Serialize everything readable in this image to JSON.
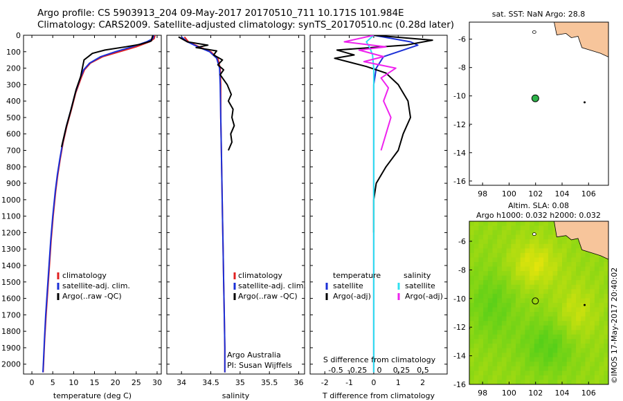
{
  "header": {
    "line1": "Argo profile: CS 5903913_204 09-May-2017 20170510_711 10.171S 101.984E",
    "line2": "Climatology: CARS2009. Satellite-adjusted climatology: synTS_20170510.nc (0.28d later)"
  },
  "stamp": "©IMOS 17-May-2017 20:40:02",
  "colors": {
    "climatology": "#e02020",
    "satellite": "#1a2fd6",
    "argo": "#000000",
    "sat_s": "#30e0f0",
    "argo_s": "#ee22ee",
    "land": "#f7c59b",
    "argo_marker": "#2db34a"
  },
  "chart_data": [
    {
      "type": "line",
      "name": "temperature-panel",
      "xlabel": "temperature (deg C)",
      "ylabel": "",
      "xlim": [
        -2,
        31
      ],
      "ylim": [
        2060,
        0
      ],
      "xticks": [
        0,
        5,
        10,
        15,
        20,
        25,
        30
      ],
      "yticks": [
        0,
        100,
        200,
        300,
        400,
        500,
        600,
        700,
        800,
        900,
        1000,
        1100,
        1200,
        1300,
        1400,
        1500,
        1600,
        1700,
        1800,
        1900,
        2000
      ],
      "legend": [
        "climatology",
        "satellite-adj. clim.",
        "Argo(..raw -QC)"
      ],
      "series": [
        {
          "name": "climatology",
          "color": "red",
          "points": [
            [
              29.5,
              0
            ],
            [
              29.3,
              20
            ],
            [
              28.2,
              40
            ],
            [
              25,
              70
            ],
            [
              21,
              100
            ],
            [
              17,
              130
            ],
            [
              14,
              170
            ],
            [
              12.6,
              210
            ],
            [
              11.8,
              260
            ],
            [
              10.5,
              350
            ],
            [
              9.5,
              450
            ],
            [
              8.4,
              550
            ],
            [
              7.5,
              650
            ],
            [
              6.8,
              750
            ],
            [
              6.2,
              850
            ],
            [
              5.7,
              950
            ],
            [
              5.1,
              1100
            ],
            [
              4.6,
              1250
            ],
            [
              4.2,
              1400
            ],
            [
              3.8,
              1550
            ],
            [
              3.4,
              1700
            ],
            [
              3.05,
              1850
            ],
            [
              2.8,
              2000
            ],
            [
              2.7,
              2050
            ]
          ]
        },
        {
          "name": "satellite-adj. clim.",
          "color": "blue",
          "points": [
            [
              29.2,
              0
            ],
            [
              29.0,
              20
            ],
            [
              27.5,
              40
            ],
            [
              24,
              70
            ],
            [
              20,
              100
            ],
            [
              16.5,
              130
            ],
            [
              13.8,
              170
            ],
            [
              12.4,
              210
            ],
            [
              11.6,
              260
            ],
            [
              10.4,
              350
            ],
            [
              9.4,
              450
            ],
            [
              8.3,
              550
            ],
            [
              7.4,
              650
            ],
            [
              6.7,
              750
            ],
            [
              6.1,
              850
            ],
            [
              5.6,
              950
            ],
            [
              5.0,
              1100
            ],
            [
              4.5,
              1250
            ],
            [
              4.1,
              1400
            ],
            [
              3.7,
              1550
            ],
            [
              3.3,
              1700
            ],
            [
              3.0,
              1850
            ],
            [
              2.75,
              2000
            ],
            [
              2.65,
              2050
            ]
          ]
        },
        {
          "name": "Argo(..raw -QC)",
          "color": "black",
          "points": [
            [
              29.0,
              0
            ],
            [
              28.8,
              15
            ],
            [
              28.6,
              35
            ],
            [
              26,
              55
            ],
            [
              22.5,
              70
            ],
            [
              17.5,
              90
            ],
            [
              14.5,
              110
            ],
            [
              12.5,
              150
            ],
            [
              12.1,
              200
            ],
            [
              11.7,
              250
            ],
            [
              10.6,
              330
            ],
            [
              9.4,
              450
            ],
            [
              8.2,
              560
            ],
            [
              7.1,
              680
            ]
          ]
        }
      ]
    },
    {
      "type": "line",
      "name": "salinity-panel",
      "xlabel": "salinity",
      "xlim": [
        33.75,
        36.1
      ],
      "ylim": [
        2060,
        0
      ],
      "xticks": [
        34,
        34.5,
        35,
        35.5,
        36
      ],
      "legend": [
        "climatology",
        "satellite-adj. clim.",
        "Argo(..raw -QC)"
      ],
      "annotation": [
        "Argo Australia",
        "PI: Susan Wijffels"
      ],
      "series": [
        {
          "name": "climatology",
          "color": "red",
          "points": [
            [
              34.05,
              10
            ],
            [
              34.12,
              40
            ],
            [
              34.3,
              70
            ],
            [
              34.5,
              100
            ],
            [
              34.62,
              140
            ],
            [
              34.66,
              200
            ],
            [
              34.67,
              300
            ],
            [
              34.67,
              500
            ],
            [
              34.68,
              700
            ],
            [
              34.69,
              900
            ],
            [
              34.7,
              1100
            ],
            [
              34.71,
              1300
            ],
            [
              34.72,
              1500
            ],
            [
              34.73,
              1700
            ],
            [
              34.74,
              1900
            ],
            [
              34.74,
              2050
            ]
          ]
        },
        {
          "name": "satellite-adj. clim.",
          "color": "blue",
          "points": [
            [
              34.0,
              10
            ],
            [
              34.1,
              40
            ],
            [
              34.28,
              70
            ],
            [
              34.48,
              100
            ],
            [
              34.6,
              140
            ],
            [
              34.65,
              200
            ],
            [
              34.66,
              300
            ],
            [
              34.67,
              500
            ],
            [
              34.68,
              700
            ],
            [
              34.69,
              900
            ],
            [
              34.7,
              1100
            ],
            [
              34.71,
              1300
            ],
            [
              34.72,
              1500
            ],
            [
              34.73,
              1700
            ],
            [
              34.74,
              1900
            ],
            [
              34.74,
              2050
            ]
          ]
        },
        {
          "name": "Argo(..raw -QC)",
          "color": "black",
          "points": [
            [
              33.95,
              10
            ],
            [
              34.1,
              40
            ],
            [
              34.45,
              60
            ],
            [
              34.25,
              75
            ],
            [
              34.6,
              95
            ],
            [
              34.55,
              120
            ],
            [
              34.7,
              150
            ],
            [
              34.62,
              180
            ],
            [
              34.72,
              210
            ],
            [
              34.66,
              240
            ],
            [
              34.78,
              300
            ],
            [
              34.85,
              360
            ],
            [
              34.8,
              400
            ],
            [
              34.88,
              450
            ],
            [
              34.86,
              500
            ],
            [
              34.9,
              550
            ],
            [
              34.84,
              600
            ],
            [
              34.86,
              650
            ],
            [
              34.8,
              700
            ]
          ]
        }
      ]
    },
    {
      "type": "line",
      "name": "difference-panel",
      "xlabel": "T difference from climatology",
      "top_label": "S difference from climatology",
      "xlim": [
        -2.6,
        3.0
      ],
      "ylim": [
        2060,
        0
      ],
      "xticks": [
        -2,
        -1,
        0,
        1,
        2
      ],
      "top_ticks": [
        "-0.5",
        "-0.25",
        "0",
        "0.25",
        "0.5"
      ],
      "legend_headers": [
        "temperature",
        "salinity"
      ],
      "legend": [
        "satellite",
        "Argo(-adj)",
        "satellite",
        "Argo(-adj)"
      ],
      "series": [
        {
          "name": "satellite",
          "group": "temperature",
          "color": "blue",
          "points": [
            [
              0,
              0
            ],
            [
              1.5,
              40
            ],
            [
              1.8,
              60
            ],
            [
              1.2,
              90
            ],
            [
              0.4,
              130
            ],
            [
              0.1,
              200
            ],
            [
              0,
              300
            ],
            [
              0,
              2050
            ]
          ]
        },
        {
          "name": "Argo(-adj)",
          "group": "temperature",
          "color": "black",
          "points": [
            [
              0,
              0
            ],
            [
              2.4,
              30
            ],
            [
              1.3,
              60
            ],
            [
              -1.5,
              90
            ],
            [
              -0.8,
              120
            ],
            [
              -1.6,
              140
            ],
            [
              -0.3,
              190
            ],
            [
              0.5,
              230
            ],
            [
              1.0,
              300
            ],
            [
              1.4,
              400
            ],
            [
              1.5,
              500
            ],
            [
              1.2,
              600
            ],
            [
              1.0,
              700
            ],
            [
              0.5,
              800
            ],
            [
              0.1,
              900
            ],
            [
              0,
              1000
            ],
            [
              0,
              1200
            ]
          ]
        },
        {
          "name": "satellite",
          "group": "salinity",
          "color": "cyan",
          "points": [
            [
              0,
              0
            ],
            [
              -0.3,
              40
            ],
            [
              -0.15,
              80
            ],
            [
              -0.05,
              120
            ],
            [
              0,
              200
            ],
            [
              0,
              2050
            ]
          ]
        },
        {
          "name": "Argo(-adj)",
          "group": "salinity",
          "color": "magenta",
          "points": [
            [
              0,
              0
            ],
            [
              -1.2,
              40
            ],
            [
              0.5,
              70
            ],
            [
              -0.6,
              90
            ],
            [
              0.4,
              130
            ],
            [
              -0.4,
              160
            ],
            [
              0.9,
              200
            ],
            [
              0.3,
              260
            ],
            [
              0.6,
              320
            ],
            [
              0.4,
              400
            ],
            [
              0.7,
              500
            ],
            [
              0.5,
              600
            ],
            [
              0.3,
              700
            ]
          ]
        }
      ]
    },
    {
      "type": "scatter",
      "name": "sst-map",
      "title": "sat. SST: NaN Argo: 28.8",
      "xlim": [
        97,
        107.5
      ],
      "ylim": [
        -16.3,
        -4.8
      ],
      "xticks": [
        98,
        100,
        102,
        104,
        106
      ],
      "yticks": [
        -6,
        -8,
        -10,
        -12,
        -14,
        -16
      ],
      "argo_position": [
        101.98,
        -10.17
      ]
    },
    {
      "type": "heatmap",
      "name": "sla-map",
      "title_lines": [
        "Altim. SLA: 0.08",
        "Argo h1000: 0.032 h2000: 0.032"
      ],
      "xlim": [
        97,
        107.5
      ],
      "ylim": [
        -16,
        -4.6
      ],
      "xticks": [
        98,
        100,
        102,
        104,
        106
      ],
      "yticks": [
        -6,
        -8,
        -10,
        -12,
        -14,
        -16
      ],
      "argo_position": [
        101.98,
        -10.17
      ]
    }
  ]
}
